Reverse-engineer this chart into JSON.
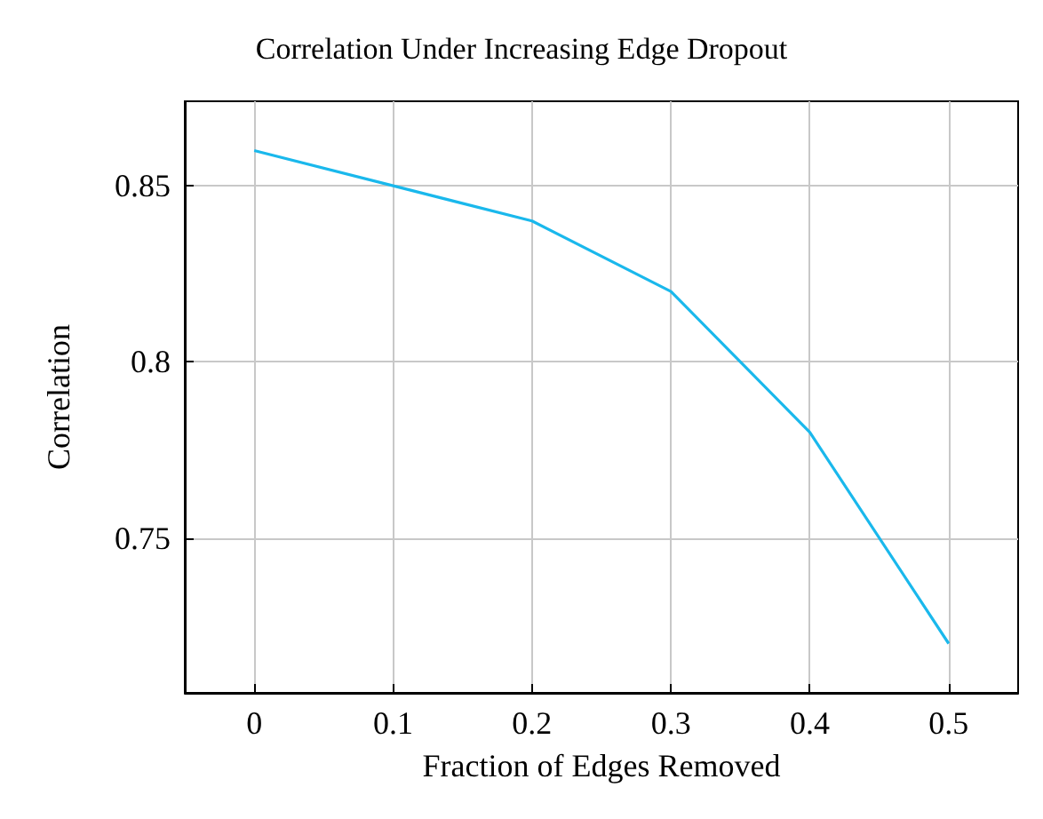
{
  "chart_data": {
    "type": "line",
    "title": "Correlation Under Increasing Edge Dropout",
    "xlabel": "Fraction of Edges Removed",
    "ylabel": "Correlation",
    "x": [
      0,
      0.1,
      0.2,
      0.3,
      0.4,
      0.5
    ],
    "series": [
      {
        "color": "#1ab8ec",
        "values": [
          0.86,
          0.85,
          0.84,
          0.82,
          0.78,
          0.72
        ]
      }
    ],
    "xlim": [
      -0.05,
      0.55
    ],
    "xticks": [
      0,
      0.1,
      0.2,
      0.3,
      0.4,
      0.5
    ],
    "ylim": [
      0.706,
      0.874
    ],
    "yticks": [
      0.75,
      0.8,
      0.85
    ],
    "grid": true,
    "marker": "none",
    "line_style": "solid"
  }
}
